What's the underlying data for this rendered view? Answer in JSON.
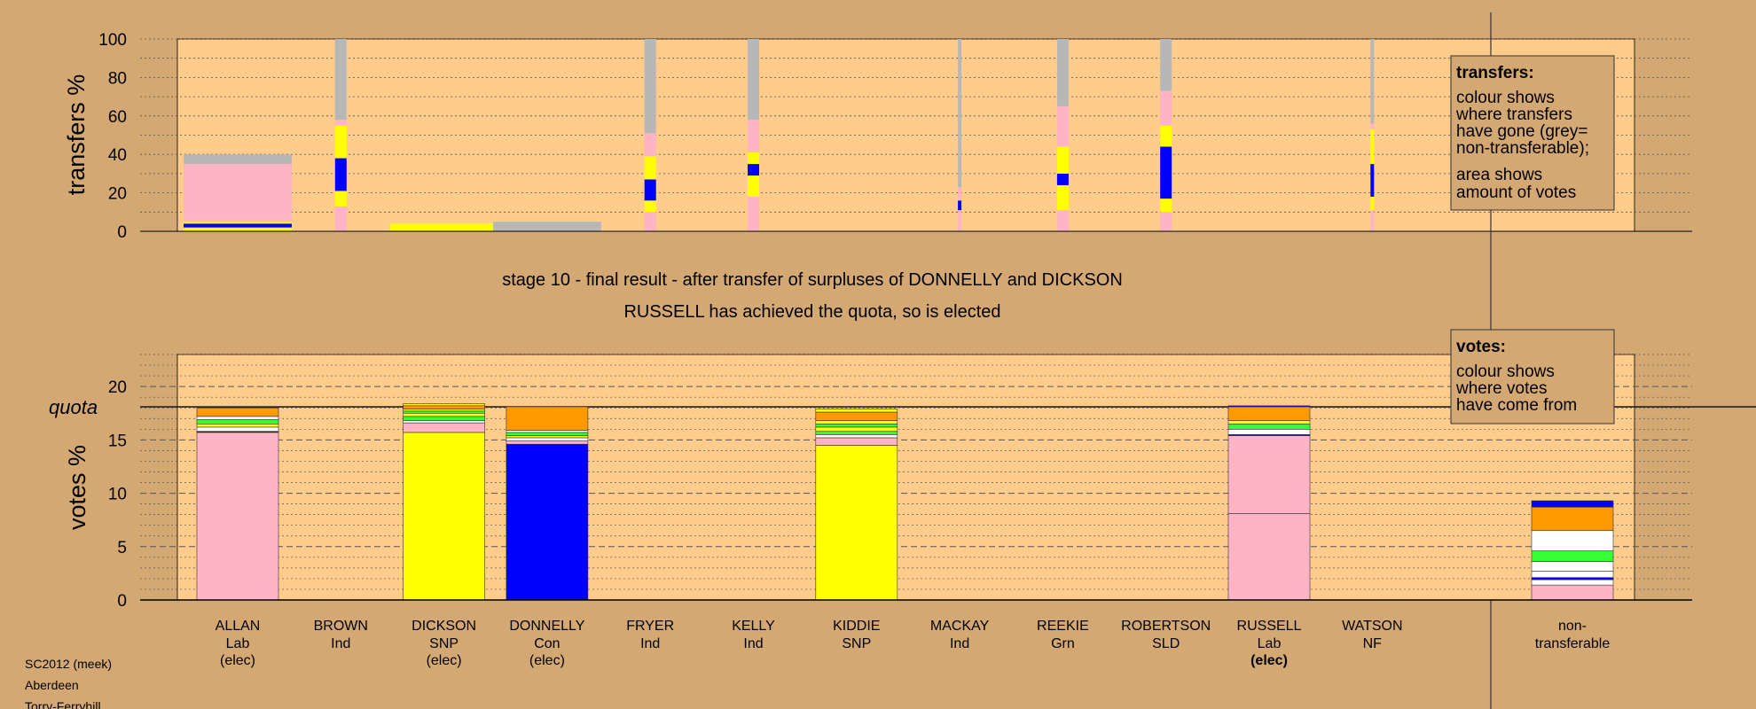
{
  "caption": {
    "line1": "stage 10 - final result - after transfer of surpluses of DONNELLY and DICKSON",
    "line2": "RUSSELL has achieved the quota, so is elected"
  },
  "footer": [
    "SC2012 (meek)",
    "Aberdeen",
    "Torry-Ferryhill"
  ],
  "legend_transfers": {
    "title": "transfers:",
    "lines": [
      "colour shows",
      "where transfers",
      "have gone (grey=",
      "non-transferable);",
      "area shows",
      "amount of votes"
    ]
  },
  "legend_votes": {
    "title": "votes:",
    "lines": [
      "colour shows",
      "where votes",
      "have come from"
    ]
  },
  "colors": {
    "background": "#d4a873",
    "plot_bg": "#ffcc8c",
    "Lab": "#ffb3c6",
    "SNP": "#ffff00",
    "Con": "#0000ff",
    "SLD": "#ff9900",
    "Grn": "#33ff33",
    "NF": "#ffffff",
    "Ind": "#b7b7b7",
    "nontransferable": "#b3b3b3"
  },
  "chart_data": [
    {
      "type": "bar",
      "id": "transfers",
      "ylabel": "transfers %",
      "ylim": [
        0,
        100
      ],
      "yticks": [
        0,
        20,
        40,
        60,
        80,
        100
      ],
      "grid": "dotted every 10",
      "categories": [
        "ALLAN",
        "BROWN",
        "DICKSON",
        "DONNELLY",
        "FRYER",
        "KELLY",
        "KIDDIE",
        "MACKAY",
        "REEKIE",
        "ROBERTSON",
        "RUSSELL",
        "WATSON"
      ],
      "bars": [
        {
          "candidate": "ALLAN",
          "width": "wide",
          "segments": [
            [
              "SNP",
              2
            ],
            [
              "Con",
              2
            ],
            [
              "SNP",
              1
            ],
            [
              "Lab",
              2
            ],
            [
              "Lab",
              28
            ],
            [
              "Ind",
              5
            ]
          ]
        },
        {
          "candidate": "BROWN",
          "width": "thin",
          "segments": [
            [
              "Lab",
              13
            ],
            [
              "SNP",
              8
            ],
            [
              "Con",
              17
            ],
            [
              "SNP",
              17
            ],
            [
              "Lab",
              3
            ],
            [
              "Ind",
              42
            ]
          ]
        },
        {
          "candidate": "DICKSON",
          "width": "wide",
          "segments": [
            [
              "SNP",
              4
            ]
          ]
        },
        {
          "candidate": "DONNELLY",
          "width": "wide",
          "segments": [
            [
              "Ind",
              1
            ],
            [
              "Ind",
              4
            ]
          ]
        },
        {
          "candidate": "FRYER",
          "width": "thin",
          "segments": [
            [
              "Lab",
              10
            ],
            [
              "SNP",
              6
            ],
            [
              "Con",
              11
            ],
            [
              "SNP",
              12
            ],
            [
              "Lab",
              12
            ],
            [
              "Ind",
              49
            ]
          ]
        },
        {
          "candidate": "KELLY",
          "width": "thin",
          "segments": [
            [
              "Lab",
              18
            ],
            [
              "SNP",
              11
            ],
            [
              "Con",
              6
            ],
            [
              "SNP",
              6
            ],
            [
              "Lab",
              17
            ],
            [
              "Ind",
              42
            ]
          ]
        },
        {
          "candidate": "MACKAY",
          "width": "hairline",
          "segments": [
            [
              "Lab",
              11
            ],
            [
              "Con",
              5
            ],
            [
              "Lab",
              7
            ],
            [
              "Ind",
              77
            ]
          ]
        },
        {
          "candidate": "REEKIE",
          "width": "thin",
          "segments": [
            [
              "Lab",
              11
            ],
            [
              "SNP",
              13
            ],
            [
              "Con",
              6
            ],
            [
              "SNP",
              14
            ],
            [
              "Lab",
              21
            ],
            [
              "Ind",
              35
            ]
          ]
        },
        {
          "candidate": "ROBERTSON",
          "width": "thin",
          "segments": [
            [
              "Lab",
              10
            ],
            [
              "SNP",
              7
            ],
            [
              "Con",
              27
            ],
            [
              "SNP",
              11
            ],
            [
              "Lab",
              18
            ],
            [
              "Ind",
              27
            ]
          ]
        },
        {
          "candidate": "WATSON",
          "width": "hairline",
          "segments": [
            [
              "Lab",
              11
            ],
            [
              "SNP",
              7
            ],
            [
              "Con",
              17
            ],
            [
              "SNP",
              18
            ],
            [
              "Lab",
              3
            ],
            [
              "Ind",
              44
            ]
          ]
        }
      ]
    },
    {
      "type": "bar",
      "id": "votes",
      "ylabel": "votes %",
      "ylim": [
        0,
        23
      ],
      "yticks": [
        0,
        5,
        10,
        15,
        20
      ],
      "grid": "dashed every 5, dotted every 1",
      "quota": {
        "label": "quota",
        "value": 18.1
      },
      "categories": [
        {
          "name": "ALLAN",
          "party": "Lab",
          "status": "(elec)",
          "status_bold": false
        },
        {
          "name": "BROWN",
          "party": "Ind",
          "status": "",
          "status_bold": false
        },
        {
          "name": "DICKSON",
          "party": "SNP",
          "status": "(elec)",
          "status_bold": false
        },
        {
          "name": "DONNELLY",
          "party": "Con",
          "status": "(elec)",
          "status_bold": false
        },
        {
          "name": "FRYER",
          "party": "Ind",
          "status": "",
          "status_bold": false
        },
        {
          "name": "KELLY",
          "party": "Ind",
          "status": "",
          "status_bold": false
        },
        {
          "name": "KIDDIE",
          "party": "SNP",
          "status": "",
          "status_bold": false
        },
        {
          "name": "MACKAY",
          "party": "Ind",
          "status": "",
          "status_bold": false
        },
        {
          "name": "REEKIE",
          "party": "Grn",
          "status": "",
          "status_bold": false
        },
        {
          "name": "ROBERTSON",
          "party": "SLD",
          "status": "",
          "status_bold": false
        },
        {
          "name": "RUSSELL",
          "party": "Lab",
          "status": "(elec)",
          "status_bold": true
        },
        {
          "name": "WATSON",
          "party": "NF",
          "status": "",
          "status_bold": false
        },
        {
          "name": "non-",
          "party": "transferable",
          "status": "",
          "status_bold": false
        }
      ],
      "bars": [
        {
          "candidate": "ALLAN",
          "segments": [
            [
              "Lab",
              15.7
            ],
            [
              "Con",
              0.1
            ],
            [
              "NF",
              0.4
            ],
            [
              "SNP",
              0.3
            ],
            [
              "Grn",
              0.4
            ],
            [
              "NF",
              0.3
            ],
            [
              "SLD",
              0.8
            ],
            [
              "Con",
              0.1
            ]
          ]
        },
        {
          "candidate": "DICKSON",
          "segments": [
            [
              "SNP",
              15.7
            ],
            [
              "Lab",
              0.9
            ],
            [
              "NF",
              0.2
            ],
            [
              "Grn",
              0.4
            ],
            [
              "SNP",
              0.3
            ],
            [
              "Grn",
              0.2
            ],
            [
              "SNP",
              0.2
            ],
            [
              "SLD",
              0.3
            ],
            [
              "SNP",
              0.2
            ]
          ]
        },
        {
          "candidate": "DONNELLY",
          "segments": [
            [
              "Con",
              14.6
            ],
            [
              "Lab",
              0.3
            ],
            [
              "NF",
              0.3
            ],
            [
              "SNP",
              0.2
            ],
            [
              "Grn",
              0.3
            ],
            [
              "NF",
              0.2
            ],
            [
              "SLD",
              2.2
            ]
          ]
        },
        {
          "candidate": "KIDDIE",
          "segments": [
            [
              "SNP",
              14.5
            ],
            [
              "Lab",
              0.7
            ],
            [
              "NF",
              0.3
            ],
            [
              "Grn",
              0.3
            ],
            [
              "SNP",
              0.4
            ],
            [
              "Grn",
              0.3
            ],
            [
              "SNP",
              0.3
            ],
            [
              "SLD",
              0.8
            ],
            [
              "SNP",
              0.3
            ]
          ]
        },
        {
          "candidate": "RUSSELL",
          "segments": [
            [
              "Lab",
              8.1
            ],
            [
              "Lab",
              7.3
            ],
            [
              "Con",
              0.1
            ],
            [
              "NF",
              0.5
            ],
            [
              "Grn",
              0.5
            ],
            [
              "SNP",
              0.3
            ],
            [
              "SLD",
              1.3
            ],
            [
              "Con",
              0.1
            ]
          ]
        },
        {
          "candidate": "non-transferable",
          "segments": [
            [
              "Lab",
              1.4
            ],
            [
              "NF",
              0.5
            ],
            [
              "Con",
              0.2
            ],
            [
              "NF",
              0.6
            ],
            [
              "NF",
              0.9
            ],
            [
              "Grn",
              1.0
            ],
            [
              "NF",
              1.9
            ],
            [
              "SLD",
              2.2
            ],
            [
              "Con",
              0.6
            ]
          ]
        }
      ]
    }
  ]
}
